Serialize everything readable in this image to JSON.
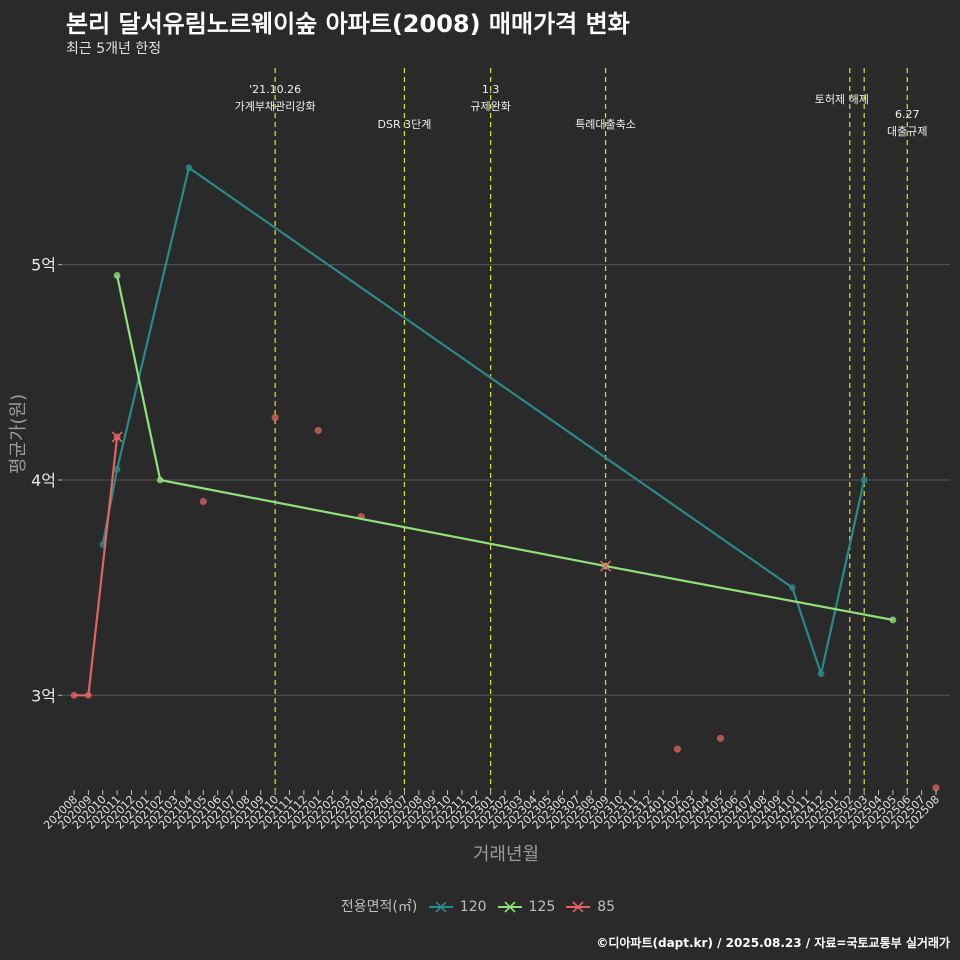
{
  "title": "본리 달서유림노르웨이숲 아파트(2008) 매매가격 변화",
  "subtitle": "최근 5개년 한정",
  "caption": "©디아파트(dapt.kr) / 2025.08.23 / 자료=국토교통부 실거래가",
  "colors": {
    "s120": "#2a8a8a",
    "s125": "#8fe07a",
    "s85": "#e06464",
    "policy": "#e0e030",
    "grid": "#555555"
  },
  "chart_data": {
    "type": "line",
    "xlabel": "거래년월",
    "ylabel": "평균가(원)",
    "legend_title": "전용면적(㎡)",
    "ylim": [
      2.56,
      5.96
    ],
    "yticks": [
      {
        "v": 3,
        "label": "3억"
      },
      {
        "v": 4,
        "label": "4억"
      },
      {
        "v": 5,
        "label": "5억"
      }
    ],
    "categories": [
      "202008",
      "202009",
      "202010",
      "202011",
      "202012",
      "202101",
      "202102",
      "202103",
      "202104",
      "202105",
      "202106",
      "202107",
      "202108",
      "202109",
      "202110",
      "202111",
      "202112",
      "202201",
      "202202",
      "202203",
      "202204",
      "202205",
      "202206",
      "202207",
      "202208",
      "202209",
      "202210",
      "202211",
      "202212",
      "202301",
      "202302",
      "202303",
      "202304",
      "202305",
      "202306",
      "202307",
      "202308",
      "202309",
      "202310",
      "202311",
      "202312",
      "202401",
      "202402",
      "202403",
      "202404",
      "202405",
      "202406",
      "202407",
      "202408",
      "202409",
      "202410",
      "202411",
      "202412",
      "202501",
      "202502",
      "202503",
      "202504",
      "202505",
      "202506",
      "202507",
      "202508"
    ],
    "series": [
      {
        "name": "120",
        "color_key": "s120",
        "points": [
          [
            "202010",
            3.7
          ],
          [
            "202011",
            4.05
          ],
          [
            "202104",
            5.45
          ],
          [
            "202410",
            3.5
          ],
          [
            "202412",
            3.1
          ],
          [
            "202503",
            4.0
          ]
        ]
      },
      {
        "name": "125",
        "color_key": "s125",
        "points": [
          [
            "202011",
            4.95
          ],
          [
            "202102",
            4.0
          ],
          [
            "202309",
            3.6
          ],
          [
            "202505",
            3.35
          ]
        ]
      },
      {
        "name": "85",
        "color_key": "s85",
        "points": [
          [
            "202008",
            3.0
          ],
          [
            "202009",
            3.0
          ],
          [
            "202011",
            4.2
          ]
        ]
      }
    ],
    "scatter": [
      {
        "x": "202105",
        "y": 3.9
      },
      {
        "x": "202110",
        "y": 4.29
      },
      {
        "x": "202201",
        "y": 4.23
      },
      {
        "x": "202204",
        "y": 3.83
      },
      {
        "x": "202402",
        "y": 2.75
      },
      {
        "x": "202405",
        "y": 2.8
      },
      {
        "x": "202508",
        "y": 2.57
      }
    ],
    "crosses": [
      {
        "x": "202011",
        "y": 4.2,
        "color_key": "s85"
      },
      {
        "x": "202309",
        "y": 3.6,
        "color_key": "s85"
      }
    ],
    "policies": [
      {
        "x": "202110",
        "lines": [
          "'21.10.26",
          "가계부채관리강화"
        ],
        "row": 0
      },
      {
        "x": "202207",
        "lines": [
          "DSR 3단계"
        ],
        "row": 2
      },
      {
        "x": "202301",
        "lines": [
          "1.3",
          "규제완화"
        ],
        "row": 0
      },
      {
        "x": "202309",
        "lines": [
          "특례대출축소"
        ],
        "row": 2
      },
      {
        "x": "202502",
        "lines": [
          "토허제 해제"
        ],
        "row": 1
      },
      {
        "x": "202503",
        "lines": [],
        "row": 1
      },
      {
        "x": "202506",
        "lines": [
          "6.27",
          "대출규제"
        ],
        "row": 3
      }
    ]
  }
}
